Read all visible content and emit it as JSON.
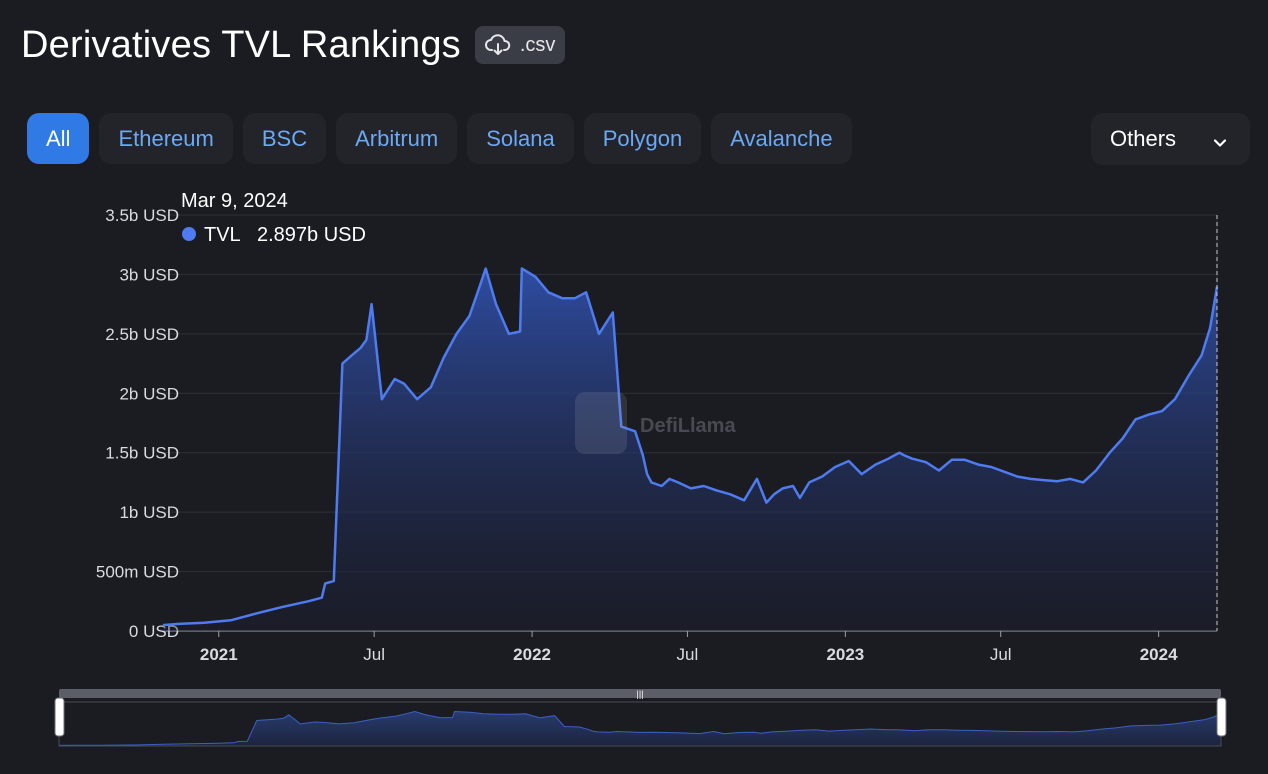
{
  "header": {
    "title": "Derivatives TVL Rankings",
    "csv_label": ".csv"
  },
  "tabs": [
    {
      "label": "All",
      "active": true
    },
    {
      "label": "Ethereum",
      "active": false
    },
    {
      "label": "BSC",
      "active": false
    },
    {
      "label": "Arbitrum",
      "active": false
    },
    {
      "label": "Solana",
      "active": false
    },
    {
      "label": "Polygon",
      "active": false
    },
    {
      "label": "Avalanche",
      "active": false
    }
  ],
  "others_dropdown": {
    "label": "Others"
  },
  "tooltip": {
    "date": "Mar 9, 2024",
    "series_name": "TVL",
    "value_text": "2.897b USD"
  },
  "watermark": "DefiLlama",
  "colors": {
    "line": "#4f7bf0",
    "accent": "#2f7ae5",
    "tab_text": "#6ba8f5"
  },
  "chart_data": {
    "type": "area",
    "title": "",
    "xlabel": "",
    "ylabel": "",
    "ylim": [
      0,
      3.5
    ],
    "y_unit": "b USD",
    "grid": true,
    "y_ticks": [
      {
        "value": 0,
        "label": "0 USD"
      },
      {
        "value": 0.5,
        "label": "500m USD"
      },
      {
        "value": 1,
        "label": "1b USD"
      },
      {
        "value": 1.5,
        "label": "1.5b USD"
      },
      {
        "value": 2,
        "label": "2b USD"
      },
      {
        "value": 2.5,
        "label": "2.5b USD"
      },
      {
        "value": 3,
        "label": "3b USD"
      },
      {
        "value": 3.5,
        "label": "3.5b USD"
      }
    ],
    "x_ticks": [
      {
        "date": "2021-01-01",
        "label": "2021",
        "bold": true
      },
      {
        "date": "2021-07-01",
        "label": "Jul",
        "bold": false
      },
      {
        "date": "2022-01-01",
        "label": "2022",
        "bold": true
      },
      {
        "date": "2022-07-01",
        "label": "Jul",
        "bold": false
      },
      {
        "date": "2023-01-01",
        "label": "2023",
        "bold": true
      },
      {
        "date": "2023-07-01",
        "label": "Jul",
        "bold": false
      },
      {
        "date": "2024-01-01",
        "label": "2024",
        "bold": true
      }
    ],
    "x_range": [
      "2020-10-28",
      "2024-03-09"
    ],
    "series": [
      {
        "name": "TVL",
        "x": [
          "2020-10-28",
          "2020-11-15",
          "2020-12-15",
          "2021-01-15",
          "2021-02-15",
          "2021-03-15",
          "2021-04-15",
          "2021-05-01",
          "2021-05-05",
          "2021-05-15",
          "2021-05-25",
          "2021-06-05",
          "2021-06-15",
          "2021-06-22",
          "2021-06-28",
          "2021-07-10",
          "2021-07-25",
          "2021-08-05",
          "2021-08-20",
          "2021-09-05",
          "2021-09-20",
          "2021-10-05",
          "2021-10-20",
          "2021-11-01",
          "2021-11-08",
          "2021-11-20",
          "2021-12-05",
          "2021-12-18",
          "2021-12-20",
          "2022-01-05",
          "2022-01-20",
          "2022-02-05",
          "2022-02-20",
          "2022-03-05",
          "2022-03-20",
          "2022-04-05",
          "2022-04-15",
          "2022-05-01",
          "2022-05-10",
          "2022-05-15",
          "2022-05-20",
          "2022-06-01",
          "2022-06-10",
          "2022-06-20",
          "2022-07-05",
          "2022-07-20",
          "2022-08-05",
          "2022-08-20",
          "2022-09-05",
          "2022-09-20",
          "2022-10-01",
          "2022-10-10",
          "2022-10-20",
          "2022-11-01",
          "2022-11-09",
          "2022-11-20",
          "2022-12-05",
          "2022-12-20",
          "2023-01-05",
          "2023-01-20",
          "2023-02-05",
          "2023-02-20",
          "2023-03-05",
          "2023-03-10",
          "2023-03-20",
          "2023-04-05",
          "2023-04-20",
          "2023-05-05",
          "2023-05-20",
          "2023-06-05",
          "2023-06-20",
          "2023-07-05",
          "2023-07-20",
          "2023-08-05",
          "2023-08-20",
          "2023-09-05",
          "2023-09-20",
          "2023-10-05",
          "2023-10-20",
          "2023-11-05",
          "2023-11-20",
          "2023-12-05",
          "2023-12-20",
          "2024-01-05",
          "2024-01-20",
          "2024-02-05",
          "2024-02-20",
          "2024-03-01",
          "2024-03-09"
        ],
        "values": [
          0.05,
          0.06,
          0.07,
          0.09,
          0.15,
          0.2,
          0.25,
          0.28,
          0.4,
          0.42,
          2.25,
          2.32,
          2.38,
          2.45,
          2.75,
          1.95,
          2.12,
          2.08,
          1.95,
          2.05,
          2.3,
          2.5,
          2.65,
          2.9,
          3.05,
          2.75,
          2.5,
          2.52,
          3.05,
          2.98,
          2.85,
          2.8,
          2.8,
          2.85,
          2.5,
          2.68,
          1.72,
          1.68,
          1.48,
          1.32,
          1.25,
          1.22,
          1.28,
          1.25,
          1.2,
          1.22,
          1.18,
          1.15,
          1.1,
          1.28,
          1.08,
          1.15,
          1.2,
          1.22,
          1.12,
          1.25,
          1.3,
          1.38,
          1.43,
          1.32,
          1.4,
          1.45,
          1.5,
          1.48,
          1.45,
          1.42,
          1.35,
          1.44,
          1.44,
          1.4,
          1.38,
          1.34,
          1.3,
          1.28,
          1.27,
          1.26,
          1.28,
          1.25,
          1.35,
          1.5,
          1.62,
          1.78,
          1.82,
          1.85,
          1.95,
          2.15,
          2.32,
          2.55,
          2.897
        ]
      }
    ]
  }
}
